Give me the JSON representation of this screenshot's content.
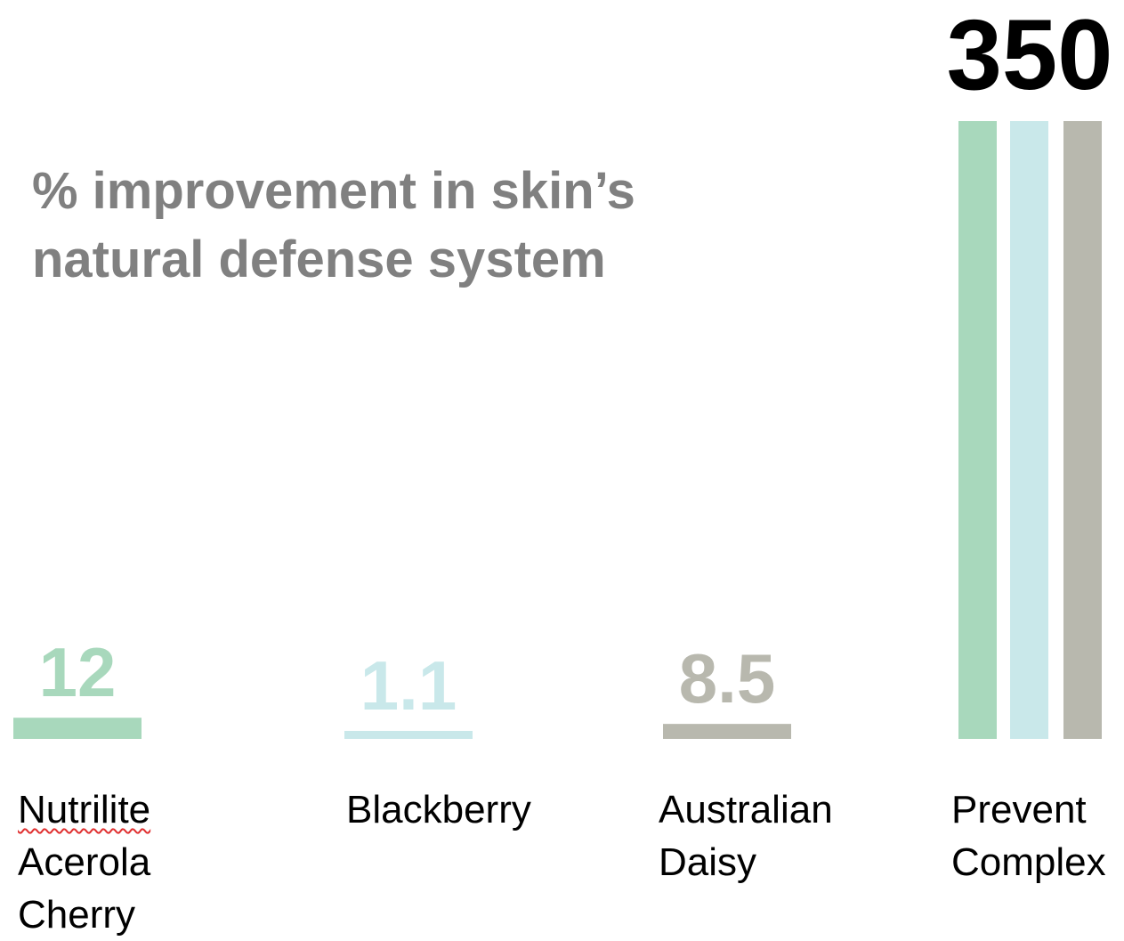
{
  "chart_data": {
    "type": "bar",
    "title_lines": [
      "% improvement in skin’s",
      "natural defense system"
    ],
    "categories": [
      "Nutrilite Acerola Cherry",
      "Blackberry",
      "Australian Daisy",
      "Prevent Complex"
    ],
    "category_label_lines": [
      [
        "Nutrilite",
        "Acerola",
        "Cherry"
      ],
      [
        "Blackberry"
      ],
      [
        "Australian",
        "Daisy"
      ],
      [
        "Prevent",
        "Complex"
      ]
    ],
    "values": [
      12,
      1.1,
      8.5,
      350
    ],
    "value_labels": [
      "12",
      "1.1",
      "8.5",
      "350"
    ],
    "colors": [
      "#a8d8bc",
      "#c9e8ea",
      "#b8b8ae"
    ],
    "value_label_colors": [
      "#a8d8bc",
      "#c9e8ea",
      "#b8b8ae",
      "#000000"
    ],
    "composite_category_colors": [
      "#a8d8bc",
      "#c9e8ea",
      "#b8b8ae"
    ],
    "xlabel": "",
    "ylabel": "",
    "ylim": [
      0,
      350
    ],
    "grid": false,
    "legend": "none"
  }
}
